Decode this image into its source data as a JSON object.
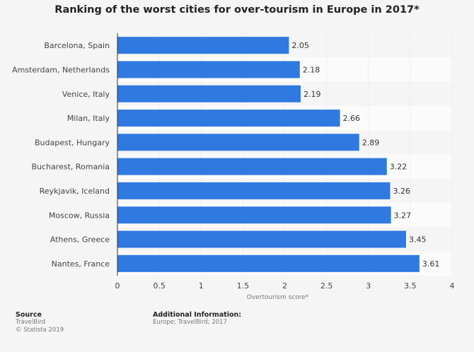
{
  "chart_data": {
    "type": "bar",
    "orientation": "horizontal",
    "title": "Ranking of the worst cities for over-tourism in Europe in 2017*",
    "categories": [
      "Barcelona, Spain",
      "Amsterdam, Netherlands",
      "Venice, Italy",
      "Milan, Italy",
      "Budapest, Hungary",
      "Bucharest, Romania",
      "Reykjavik, Iceland",
      "Moscow, Russia",
      "Athens, Greece",
      "Nantes, France"
    ],
    "values": [
      2.05,
      2.18,
      2.19,
      2.66,
      2.89,
      3.22,
      3.26,
      3.27,
      3.45,
      3.61
    ],
    "value_labels": [
      "2.05",
      "2.18",
      "2.19",
      "2.66",
      "2.89",
      "3.22",
      "3.26",
      "3.27",
      "3.45",
      "3.61"
    ],
    "xlabel": "Overtourism score*",
    "ylabel": "",
    "xlim": [
      0,
      4
    ],
    "xticks": [
      0,
      0.5,
      1,
      1.5,
      2,
      2.5,
      3,
      3.5,
      4
    ],
    "xtick_labels": [
      "0",
      "0.5",
      "1",
      "1.5",
      "2",
      "2.5",
      "3",
      "3.5",
      "4"
    ],
    "bar_color": "#2f79e0",
    "grid": true
  },
  "footer": {
    "source_heading": "Source",
    "source_lines": [
      "TravelBird",
      "© Statista 2019"
    ],
    "info_heading": "Additional Information:",
    "info_text": "Europe; TravelBird; 2017"
  }
}
